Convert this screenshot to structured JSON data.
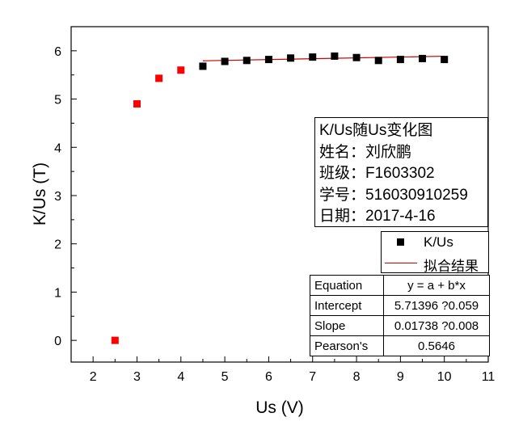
{
  "chart_data": {
    "type": "scatter",
    "xlabel": "Us (V)",
    "ylabel": "K/Us (T)",
    "xlim": [
      1.5,
      11
    ],
    "ylim": [
      -0.45,
      6.5
    ],
    "xticks": [
      2,
      3,
      4,
      5,
      6,
      7,
      8,
      9,
      10,
      11
    ],
    "yticks": [
      0,
      1,
      2,
      3,
      4,
      5,
      6
    ],
    "grid": false,
    "colors": {
      "excluded": "#ff0000",
      "data": "#000000",
      "fit": "#cc0000"
    },
    "excluded_points": {
      "x": [
        2.5,
        3.0,
        3.5,
        4.0
      ],
      "y": [
        0.0,
        4.9,
        5.43,
        5.6
      ]
    },
    "series": [
      {
        "name": "K/Us",
        "x": [
          4.5,
          5.0,
          5.5,
          6.0,
          6.5,
          7.0,
          7.5,
          8.0,
          8.5,
          9.0,
          9.5,
          10.0
        ],
        "y": [
          5.68,
          5.78,
          5.8,
          5.82,
          5.85,
          5.87,
          5.89,
          5.86,
          5.8,
          5.82,
          5.84,
          5.82
        ]
      }
    ],
    "fit": {
      "name": "拟合结果",
      "intercept": 5.71396,
      "slope": 0.01738,
      "x_range": [
        4.5,
        10.0
      ]
    }
  },
  "info": {
    "title": "K/Us随Us变化图",
    "name_line": "姓名：刘欣鹏",
    "class_line": "班级：F1603302",
    "id_line": "学号：516030910259",
    "date_line": "日期：2017-4-16"
  },
  "legend": {
    "data_label": "K/Us",
    "fit_label": "拟合结果"
  },
  "fit_table": [
    {
      "key": "Equation",
      "value": "y = a + b*x"
    },
    {
      "key": "Intercept",
      "value": "5.71396 ?0.059"
    },
    {
      "key": "Slope",
      "value": "0.01738 ?0.008"
    },
    {
      "key": "Pearson's",
      "value": "0.5646"
    }
  ]
}
